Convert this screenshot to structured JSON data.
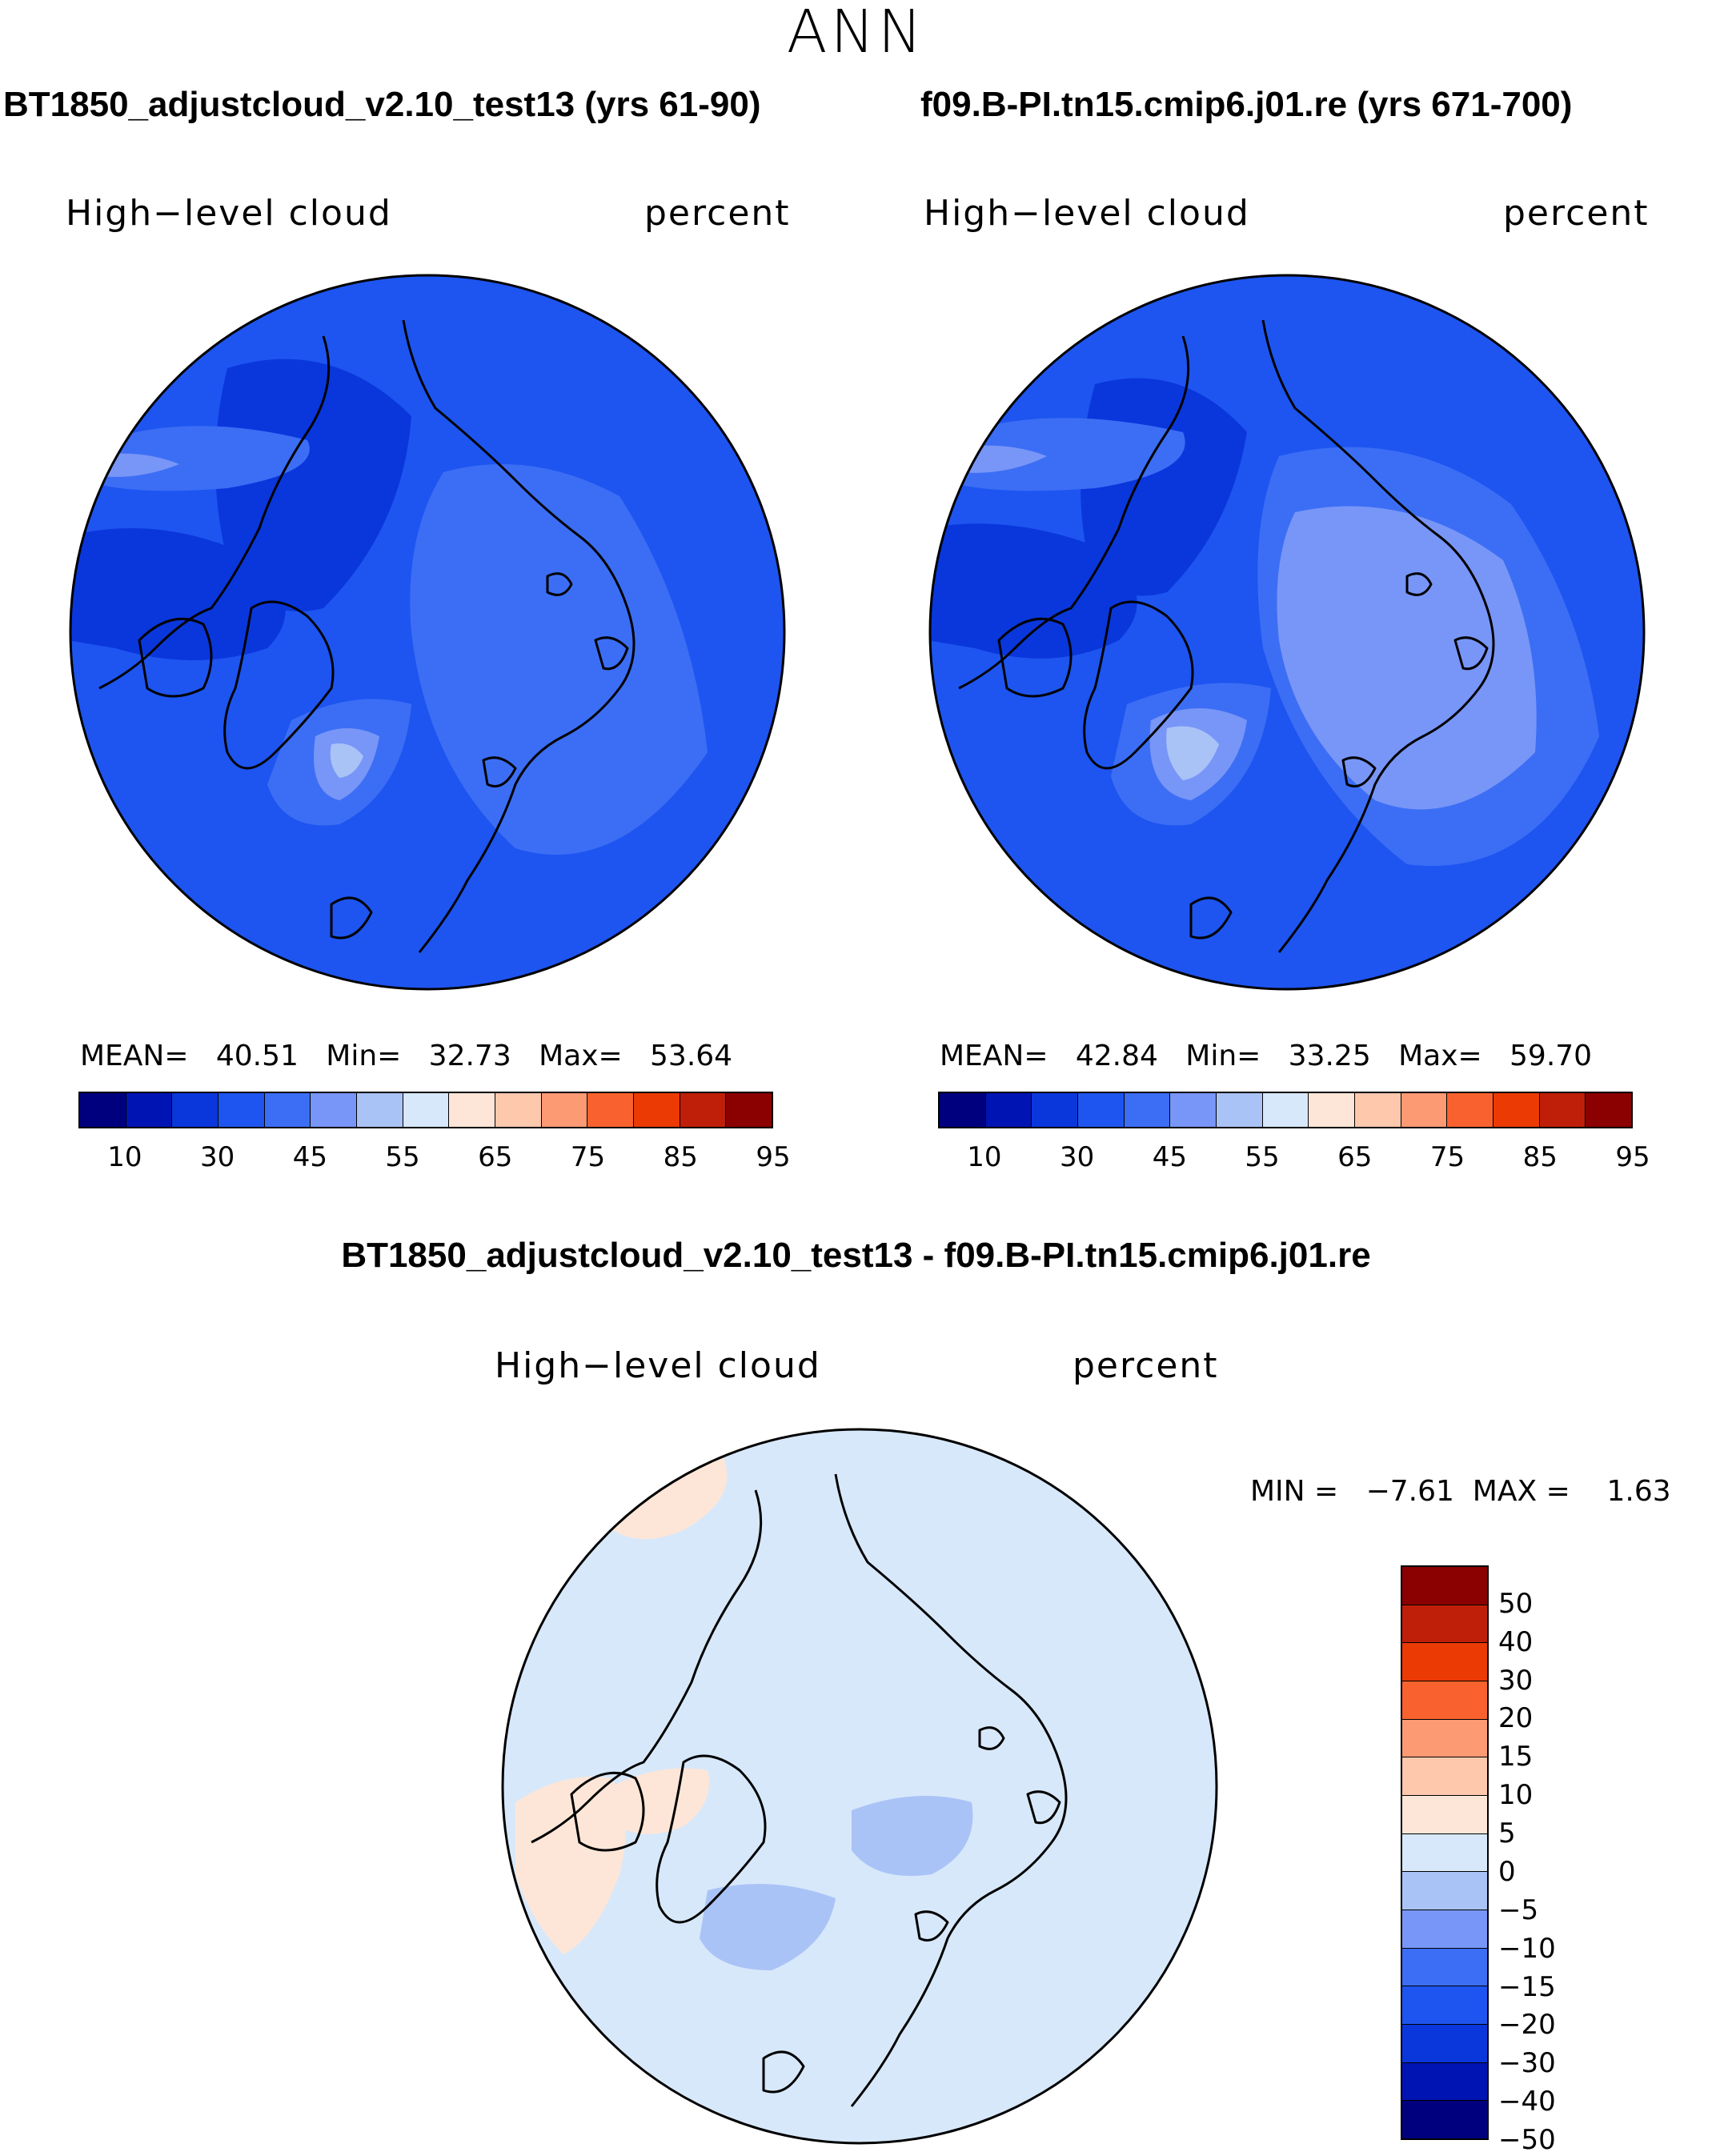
{
  "page": {
    "title": "ANN"
  },
  "chart_data": [
    {
      "type": "heatmap",
      "projection": "north-polar-stereographic",
      "title": "BT1850_adjustcloud_v2.10_test13 (yrs 61-90)",
      "variable": "High−level cloud",
      "units": "percent",
      "stats": {
        "mean_label": "MEAN=",
        "mean": "40.51",
        "min_label": "Min=",
        "min": "32.73",
        "max_label": "Max=",
        "max": "53.64"
      },
      "colorbar": {
        "labels": [
          "10",
          "30",
          "45",
          "55",
          "65",
          "75",
          "85",
          "95"
        ],
        "colors": [
          "#00007f",
          "#0014b4",
          "#0a37dc",
          "#1e55f0",
          "#3c6ef5",
          "#7896f7",
          "#aac3f7",
          "#d7e8fa",
          "#fde6d7",
          "#fdc8ac",
          "#fc9a73",
          "#f9622e",
          "#ec3a05",
          "#bf1f08",
          "#8b0000"
        ]
      }
    },
    {
      "type": "heatmap",
      "projection": "north-polar-stereographic",
      "title": "f09.B-PI.tn15.cmip6.j01.re (yrs 671-700)",
      "variable": "High−level cloud",
      "units": "percent",
      "stats": {
        "mean_label": "MEAN=",
        "mean": "42.84",
        "min_label": "Min=",
        "min": "33.25",
        "max_label": "Max=",
        "max": "59.70"
      },
      "colorbar": {
        "labels": [
          "10",
          "30",
          "45",
          "55",
          "65",
          "75",
          "85",
          "95"
        ],
        "colors": [
          "#00007f",
          "#0014b4",
          "#0a37dc",
          "#1e55f0",
          "#3c6ef5",
          "#7896f7",
          "#aac3f7",
          "#d7e8fa",
          "#fde6d7",
          "#fdc8ac",
          "#fc9a73",
          "#f9622e",
          "#ec3a05",
          "#bf1f08",
          "#8b0000"
        ]
      }
    },
    {
      "type": "heatmap",
      "projection": "north-polar-stereographic",
      "title": "BT1850_adjustcloud_v2.10_test13 - f09.B-PI.tn15.cmip6.j01.re",
      "variable": "High−level cloud",
      "units": "percent",
      "stats": {
        "min_label": "MIN =",
        "min": "−7.61",
        "max_label": "MAX =",
        "max": "1.63"
      },
      "colorbar": {
        "labels": [
          "50",
          "40",
          "30",
          "20",
          "15",
          "10",
          "5",
          "0",
          "−5",
          "−10",
          "−15",
          "−20",
          "−30",
          "−40",
          "−50"
        ],
        "colors": [
          "#8b0000",
          "#bf1f08",
          "#ec3a05",
          "#f9622e",
          "#fc9a73",
          "#fdc8ac",
          "#fde6d7",
          "#d7e8fa",
          "#aac3f7",
          "#7896f7",
          "#3c6ef5",
          "#1e55f0",
          "#0a37dc",
          "#0014b4",
          "#00007f"
        ]
      }
    }
  ]
}
